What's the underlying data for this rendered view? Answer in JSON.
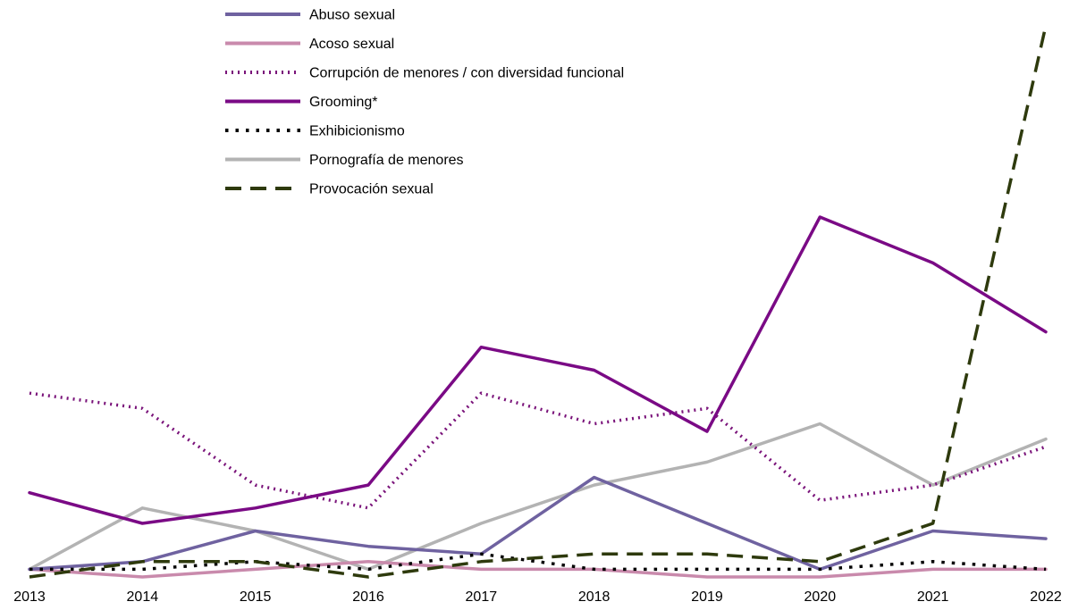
{
  "chart_data": {
    "type": "line",
    "title": "",
    "xlabel": "",
    "ylabel": "",
    "x": [
      "2013",
      "2014",
      "2015",
      "2016",
      "2017",
      "2018",
      "2019",
      "2020",
      "2021",
      "2022"
    ],
    "ylim": [
      0,
      73
    ],
    "grid": false,
    "legend_position": "top",
    "series": [
      {
        "name": "Abuso sexual",
        "color": "#6f62a0",
        "dash": "solid",
        "values": [
          1,
          2,
          6,
          4,
          3,
          13,
          7,
          1,
          6,
          5
        ]
      },
      {
        "name": "Acoso sexual",
        "color": "#c98aac",
        "dash": "solid",
        "values": [
          1,
          0,
          1,
          2,
          1,
          1,
          0,
          0,
          1,
          1
        ]
      },
      {
        "name": "Corrupción de menores / con diversidad funcional",
        "color": "#7a137a",
        "dash": "dotted",
        "values": [
          24,
          22,
          12,
          9,
          24,
          20,
          22,
          10,
          12,
          17
        ]
      },
      {
        "name": "Grooming*",
        "color": "#7a0a85",
        "dash": "solid",
        "values": [
          11,
          7,
          9,
          12,
          30,
          27,
          19,
          47,
          41,
          32
        ]
      },
      {
        "name": "Exhibicionismo",
        "color": "#000000",
        "dash": "dot-black",
        "values": [
          1,
          1,
          2,
          1,
          3,
          1,
          1,
          1,
          2,
          1
        ]
      },
      {
        "name": "Pornografía de menores",
        "color": "#b3b3b3",
        "dash": "solid",
        "values": [
          1,
          9,
          6,
          1,
          7,
          12,
          15,
          20,
          12,
          18
        ]
      },
      {
        "name": "Provocación sexual",
        "color": "#2e3a0d",
        "dash": "dashed",
        "values": [
          0,
          2,
          2,
          0,
          2,
          3,
          3,
          2,
          7,
          72
        ]
      }
    ]
  }
}
